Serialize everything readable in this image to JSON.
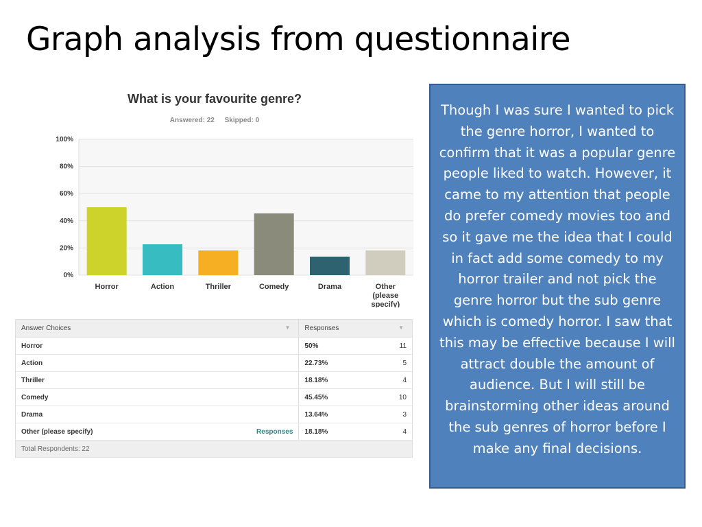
{
  "slide": {
    "title": "Graph analysis from questionnaire"
  },
  "survey": {
    "question": "What is your favourite genre?",
    "answered": "Answered: 22",
    "skipped": "Skipped: 0"
  },
  "chart_data": {
    "type": "bar",
    "title": "What is your favourite genre?",
    "categories": [
      "Horror",
      "Action",
      "Thriller",
      "Comedy",
      "Drama",
      "Other (please specify)"
    ],
    "category_lines": [
      [
        "Horror"
      ],
      [
        "Action"
      ],
      [
        "Thriller"
      ],
      [
        "Comedy"
      ],
      [
        "Drama"
      ],
      [
        "Other",
        "(please",
        "specify)"
      ]
    ],
    "values": [
      50,
      22.73,
      18.18,
      45.45,
      13.64,
      18.18
    ],
    "colors": [
      "#cdd32a",
      "#36bcc1",
      "#f6ae22",
      "#8a8b7b",
      "#2e6270",
      "#d0cdbf"
    ],
    "yticks": [
      "0%",
      "20%",
      "40%",
      "60%",
      "80%",
      "100%"
    ],
    "ylim": [
      0,
      100
    ],
    "grid": true,
    "xlabel": "",
    "ylabel": ""
  },
  "table": {
    "header": {
      "choices": "Answer Choices",
      "responses": "Responses"
    },
    "response_link": "Responses",
    "rows": [
      {
        "choice": "Horror",
        "pct": "50%",
        "count": "11"
      },
      {
        "choice": "Action",
        "pct": "22.73%",
        "count": "5"
      },
      {
        "choice": "Thriller",
        "pct": "18.18%",
        "count": "4"
      },
      {
        "choice": "Comedy",
        "pct": "45.45%",
        "count": "10"
      },
      {
        "choice": "Drama",
        "pct": "13.64%",
        "count": "3"
      },
      {
        "choice": "Other (please specify)",
        "pct": "18.18%",
        "count": "4"
      }
    ],
    "footer": "Total Respondents: 22"
  },
  "note": {
    "text": "Though I was sure I wanted to pick the genre horror, I wanted to confirm that it was a popular genre people liked to watch. However, it came to my attention that people do prefer comedy movies too and so it gave me the idea that I could in fact add some comedy to my horror trailer and not pick the genre horror but the sub genre which is comedy horror. I saw that this may be effective because I will attract double the amount of audience. But I will still be brainstorming other ideas around the sub genres of horror before I make any final decisions.",
    "bg": "#4f81bd"
  }
}
